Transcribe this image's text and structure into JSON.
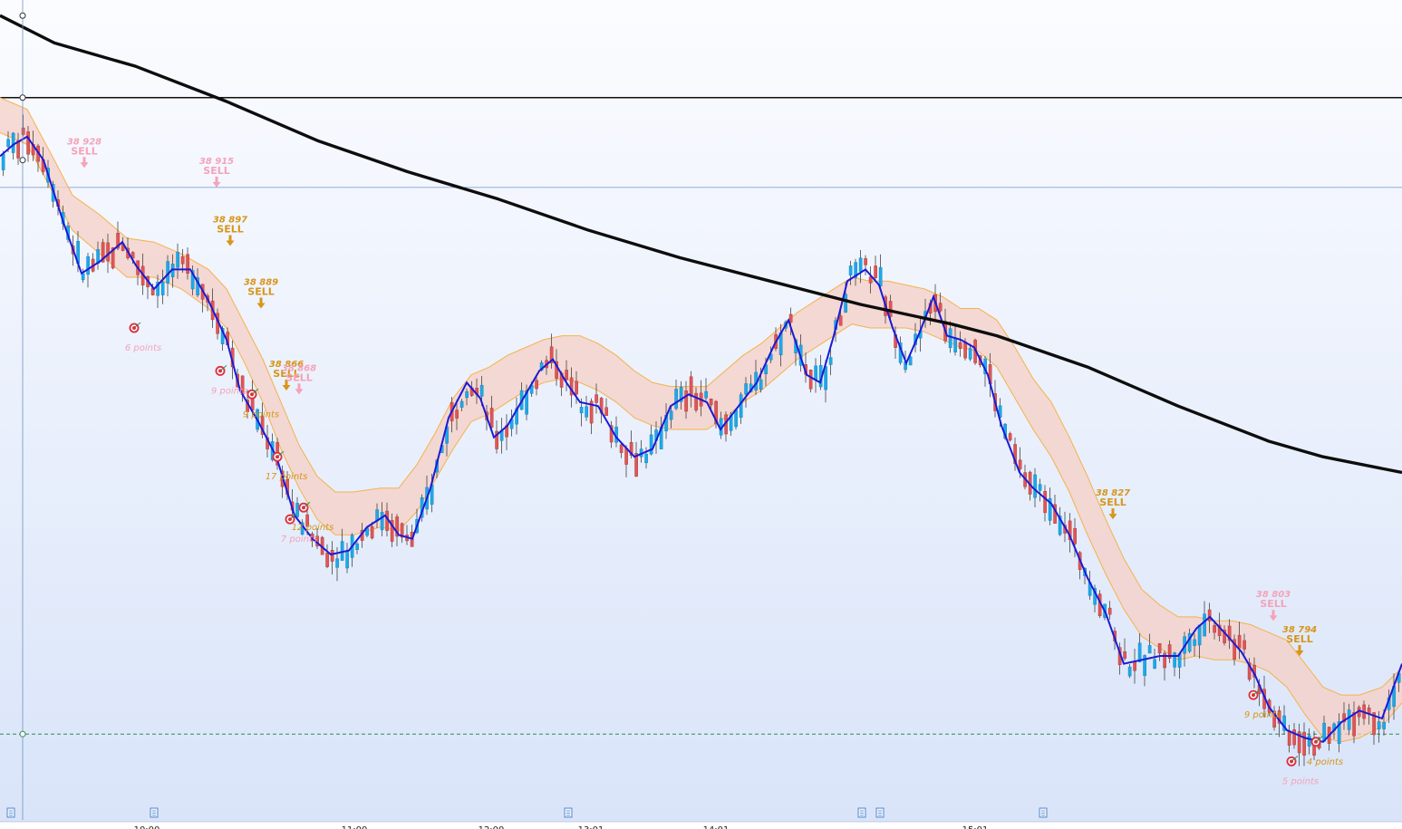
{
  "chart_data": {
    "type": "candlestick",
    "y_range": [
      38745,
      38955
    ],
    "x_range": [
      0,
      1547
    ],
    "x_axis_ticks": [
      {
        "x": 162,
        "label": "10:00"
      },
      {
        "x": 391,
        "label": "11:00"
      },
      {
        "x": 542,
        "label": "12:00"
      },
      {
        "x": 652,
        "label": "13:01"
      },
      {
        "x": 790,
        "label": "14:01"
      },
      {
        "x": 1076,
        "label": "15:01"
      }
    ],
    "time_badge": "",
    "horizontal_levels": [
      {
        "name": "black-level",
        "price": 38930,
        "color": "#111111",
        "style": "solid"
      },
      {
        "name": "blue-level",
        "price": 38907,
        "color": "#6f93c6",
        "style": "thin"
      },
      {
        "name": "green-level",
        "price": 38767,
        "color": "#2e8b57",
        "style": "dashed"
      }
    ],
    "vertical_cursor_x": 25,
    "slow_ma": [
      [
        0,
        38951
      ],
      [
        60,
        38944
      ],
      [
        150,
        38938
      ],
      [
        250,
        38929
      ],
      [
        350,
        38919
      ],
      [
        450,
        38911
      ],
      [
        550,
        38904
      ],
      [
        650,
        38896
      ],
      [
        750,
        38889
      ],
      [
        850,
        38883
      ],
      [
        950,
        38877
      ],
      [
        1050,
        38872
      ],
      [
        1100,
        38869
      ],
      [
        1200,
        38861
      ],
      [
        1300,
        38851
      ],
      [
        1400,
        38842
      ],
      [
        1460,
        38838
      ],
      [
        1547,
        38834
      ]
    ],
    "fast_ma": [
      [
        0,
        38915
      ],
      [
        15,
        38918
      ],
      [
        30,
        38920
      ],
      [
        48,
        38914
      ],
      [
        70,
        38898
      ],
      [
        90,
        38885
      ],
      [
        110,
        38888
      ],
      [
        135,
        38893
      ],
      [
        150,
        38887
      ],
      [
        170,
        38881
      ],
      [
        190,
        38886
      ],
      [
        210,
        38886
      ],
      [
        230,
        38878
      ],
      [
        250,
        38868
      ],
      [
        265,
        38855
      ],
      [
        285,
        38847
      ],
      [
        305,
        38838
      ],
      [
        325,
        38823
      ],
      [
        345,
        38817
      ],
      [
        365,
        38813
      ],
      [
        385,
        38814
      ],
      [
        405,
        38820
      ],
      [
        425,
        38823
      ],
      [
        440,
        38818
      ],
      [
        455,
        38817
      ],
      [
        475,
        38830
      ],
      [
        495,
        38848
      ],
      [
        515,
        38857
      ],
      [
        530,
        38853
      ],
      [
        545,
        38843
      ],
      [
        560,
        38846
      ],
      [
        575,
        38852
      ],
      [
        595,
        38860
      ],
      [
        610,
        38863
      ],
      [
        625,
        38857
      ],
      [
        640,
        38852
      ],
      [
        660,
        38851
      ],
      [
        680,
        38843
      ],
      [
        700,
        38838
      ],
      [
        720,
        38840
      ],
      [
        740,
        38851
      ],
      [
        760,
        38854
      ],
      [
        780,
        38852
      ],
      [
        795,
        38845
      ],
      [
        815,
        38851
      ],
      [
        835,
        38857
      ],
      [
        855,
        38867
      ],
      [
        870,
        38873
      ],
      [
        890,
        38859
      ],
      [
        905,
        38857
      ],
      [
        920,
        38869
      ],
      [
        935,
        38883
      ],
      [
        955,
        38886
      ],
      [
        970,
        38882
      ],
      [
        985,
        38871
      ],
      [
        1000,
        38862
      ],
      [
        1015,
        38870
      ],
      [
        1030,
        38879
      ],
      [
        1045,
        38869
      ],
      [
        1060,
        38868
      ],
      [
        1075,
        38866
      ],
      [
        1090,
        38859
      ],
      [
        1105,
        38846
      ],
      [
        1125,
        38834
      ],
      [
        1140,
        38830
      ],
      [
        1160,
        38826
      ],
      [
        1180,
        38818
      ],
      [
        1200,
        38807
      ],
      [
        1220,
        38798
      ],
      [
        1240,
        38785
      ],
      [
        1260,
        38786
      ],
      [
        1280,
        38787
      ],
      [
        1300,
        38787
      ],
      [
        1320,
        38794
      ],
      [
        1335,
        38797
      ],
      [
        1355,
        38792
      ],
      [
        1370,
        38788
      ],
      [
        1385,
        38782
      ],
      [
        1400,
        38774
      ],
      [
        1420,
        38768
      ],
      [
        1440,
        38766
      ],
      [
        1460,
        38765
      ],
      [
        1480,
        38770
      ],
      [
        1500,
        38773
      ],
      [
        1525,
        38771
      ],
      [
        1547,
        38785
      ]
    ],
    "band_upper": [
      [
        0,
        38930
      ],
      [
        30,
        38927
      ],
      [
        60,
        38914
      ],
      [
        80,
        38905
      ],
      [
        110,
        38900
      ],
      [
        140,
        38894
      ],
      [
        170,
        38893
      ],
      [
        200,
        38890
      ],
      [
        230,
        38886
      ],
      [
        250,
        38881
      ],
      [
        270,
        38872
      ],
      [
        290,
        38863
      ],
      [
        310,
        38852
      ],
      [
        330,
        38841
      ],
      [
        350,
        38833
      ],
      [
        370,
        38829
      ],
      [
        390,
        38829
      ],
      [
        420,
        38830
      ],
      [
        440,
        38830
      ],
      [
        460,
        38836
      ],
      [
        480,
        38844
      ],
      [
        500,
        38853
      ],
      [
        520,
        38859
      ],
      [
        540,
        38861
      ],
      [
        560,
        38864
      ],
      [
        580,
        38866
      ],
      [
        600,
        38868
      ],
      [
        620,
        38869
      ],
      [
        640,
        38869
      ],
      [
        660,
        38867
      ],
      [
        680,
        38864
      ],
      [
        700,
        38860
      ],
      [
        720,
        38857
      ],
      [
        740,
        38856
      ],
      [
        760,
        38856
      ],
      [
        780,
        38856
      ],
      [
        800,
        38860
      ],
      [
        820,
        38864
      ],
      [
        840,
        38867
      ],
      [
        860,
        38871
      ],
      [
        880,
        38875
      ],
      [
        900,
        38878
      ],
      [
        920,
        38881
      ],
      [
        940,
        38884
      ],
      [
        960,
        38883
      ],
      [
        980,
        38883
      ],
      [
        1000,
        38882
      ],
      [
        1020,
        38881
      ],
      [
        1040,
        38879
      ],
      [
        1060,
        38876
      ],
      [
        1080,
        38876
      ],
      [
        1100,
        38873
      ],
      [
        1120,
        38866
      ],
      [
        1140,
        38858
      ],
      [
        1160,
        38852
      ],
      [
        1180,
        38843
      ],
      [
        1200,
        38833
      ],
      [
        1220,
        38822
      ],
      [
        1240,
        38812
      ],
      [
        1260,
        38804
      ],
      [
        1280,
        38800
      ],
      [
        1300,
        38797
      ],
      [
        1320,
        38797
      ],
      [
        1340,
        38796
      ],
      [
        1360,
        38796
      ],
      [
        1380,
        38795
      ],
      [
        1400,
        38793
      ],
      [
        1420,
        38791
      ],
      [
        1440,
        38785
      ],
      [
        1460,
        38779
      ],
      [
        1480,
        38777
      ],
      [
        1500,
        38777
      ],
      [
        1525,
        38779
      ],
      [
        1547,
        38784
      ]
    ],
    "band_lower": [
      [
        0,
        38921
      ],
      [
        30,
        38918
      ],
      [
        60,
        38905
      ],
      [
        80,
        38896
      ],
      [
        110,
        38890
      ],
      [
        140,
        38884
      ],
      [
        170,
        38884
      ],
      [
        200,
        38881
      ],
      [
        230,
        38876
      ],
      [
        250,
        38871
      ],
      [
        270,
        38862
      ],
      [
        290,
        38852
      ],
      [
        310,
        38840
      ],
      [
        330,
        38830
      ],
      [
        350,
        38822
      ],
      [
        370,
        38818
      ],
      [
        390,
        38818
      ],
      [
        420,
        38820
      ],
      [
        440,
        38819
      ],
      [
        460,
        38824
      ],
      [
        480,
        38832
      ],
      [
        500,
        38840
      ],
      [
        520,
        38847
      ],
      [
        540,
        38849
      ],
      [
        560,
        38852
      ],
      [
        580,
        38855
      ],
      [
        600,
        38857
      ],
      [
        620,
        38858
      ],
      [
        640,
        38857
      ],
      [
        660,
        38855
      ],
      [
        680,
        38852
      ],
      [
        700,
        38848
      ],
      [
        720,
        38846
      ],
      [
        740,
        38845
      ],
      [
        760,
        38845
      ],
      [
        780,
        38845
      ],
      [
        800,
        38848
      ],
      [
        820,
        38852
      ],
      [
        840,
        38855
      ],
      [
        860,
        38859
      ],
      [
        880,
        38863
      ],
      [
        900,
        38866
      ],
      [
        920,
        38869
      ],
      [
        940,
        38872
      ],
      [
        960,
        38871
      ],
      [
        980,
        38871
      ],
      [
        1000,
        38871
      ],
      [
        1020,
        38870
      ],
      [
        1040,
        38868
      ],
      [
        1060,
        38866
      ],
      [
        1080,
        38865
      ],
      [
        1100,
        38861
      ],
      [
        1120,
        38853
      ],
      [
        1140,
        38845
      ],
      [
        1160,
        38838
      ],
      [
        1180,
        38829
      ],
      [
        1200,
        38818
      ],
      [
        1220,
        38808
      ],
      [
        1240,
        38799
      ],
      [
        1260,
        38792
      ],
      [
        1280,
        38789
      ],
      [
        1300,
        38786
      ],
      [
        1320,
        38787
      ],
      [
        1340,
        38786
      ],
      [
        1360,
        38786
      ],
      [
        1380,
        38785
      ],
      [
        1400,
        38783
      ],
      [
        1420,
        38779
      ],
      [
        1440,
        38772
      ],
      [
        1460,
        38766
      ],
      [
        1480,
        38765
      ],
      [
        1500,
        38766
      ],
      [
        1525,
        38769
      ],
      [
        1547,
        38775
      ]
    ],
    "signals": [
      {
        "x": 93,
        "price_label": "38 928",
        "word": "SELL",
        "faded": true,
        "y_price": 38912
      },
      {
        "x": 239,
        "price_label": "38 915",
        "word": "SELL",
        "faded": true,
        "y_price": 38907
      },
      {
        "x": 254,
        "price_label": "38 897",
        "word": "SELL",
        "faded": false,
        "y_price": 38892
      },
      {
        "x": 288,
        "price_label": "38 889",
        "word": "SELL",
        "faded": false,
        "y_price": 38876
      },
      {
        "x": 316,
        "price_label": "38 866",
        "word": "SELL",
        "faded": false,
        "y_price": 38855
      },
      {
        "x": 330,
        "price_label": "38 868",
        "word": "SELL",
        "faded": true,
        "y_price": 38854
      },
      {
        "x": 1228,
        "price_label": "38 827",
        "word": "SELL",
        "faded": false,
        "y_price": 38822
      },
      {
        "x": 1405,
        "price_label": "38 803",
        "word": "SELL",
        "faded": true,
        "y_price": 38796
      },
      {
        "x": 1434,
        "price_label": "38 794",
        "word": "SELL",
        "faded": false,
        "y_price": 38787
      }
    ],
    "targets": [
      {
        "x": 148,
        "y_price": 38871,
        "label": "6 points",
        "faded": true
      },
      {
        "x": 243,
        "y_price": 38860,
        "label": "9 points",
        "faded": true
      },
      {
        "x": 278,
        "y_price": 38854,
        "label": "9 points",
        "faded": false
      },
      {
        "x": 306,
        "y_price": 38838,
        "label": "17 points",
        "faded": false
      },
      {
        "x": 335,
        "y_price": 38825,
        "label": "12 points",
        "faded": false
      },
      {
        "x": 320,
        "y_price": 38822,
        "label": "7 points",
        "faded": true
      },
      {
        "x": 1383,
        "y_price": 38777,
        "label": "9 points",
        "faded": false
      },
      {
        "x": 1452,
        "y_price": 38765,
        "label": "4 points",
        "faded": false
      },
      {
        "x": 1425,
        "y_price": 38760,
        "label": "5 points",
        "faded": true
      }
    ],
    "event_markers_x": [
      12,
      170,
      627,
      951,
      971,
      1151
    ]
  }
}
